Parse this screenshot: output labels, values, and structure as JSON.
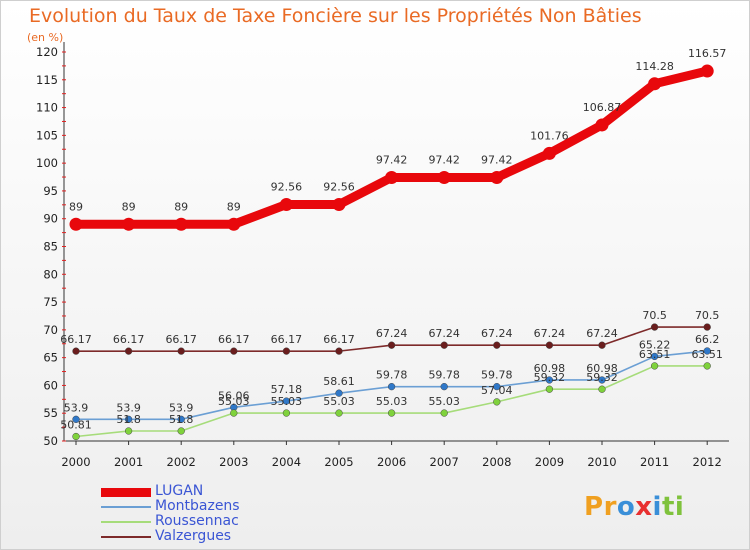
{
  "title": "Evolution du Taux de Taxe Foncière sur les Propriétés Non Bâties",
  "unit_label": "(en %)",
  "chart_data": {
    "type": "line",
    "title": "Evolution du Taux de Taxe Foncière sur les Propriétés Non Bâties",
    "ylabel": "(en %)",
    "xlabel": "",
    "ylim": [
      50,
      120
    ],
    "yticks": [
      50,
      55,
      60,
      65,
      70,
      75,
      80,
      85,
      90,
      95,
      100,
      105,
      110,
      115,
      120
    ],
    "x": [
      "2000",
      "2001",
      "2002",
      "2003",
      "2004",
      "2005",
      "2006",
      "2007",
      "2008",
      "2009",
      "2010",
      "2011",
      "2012"
    ],
    "grid": false,
    "legend_position": "bottom-left",
    "series": [
      {
        "name": "LUGAN",
        "color": "#e8080c",
        "bold": true,
        "values": [
          89,
          89,
          89,
          89,
          92.56,
          92.56,
          97.42,
          97.42,
          97.42,
          101.76,
          106.87,
          114.28,
          116.57
        ],
        "labels": [
          "89",
          "89",
          "89",
          "89",
          "92.56",
          "92.56",
          "97.42",
          "97.42",
          "97.42",
          "101.76",
          "106.87",
          "114.28",
          "116.57"
        ]
      },
      {
        "name": "Montbazens",
        "color": "#6b9fd4",
        "marker": "#2f78c9",
        "values": [
          53.9,
          53.9,
          53.9,
          56.06,
          57.18,
          58.61,
          59.78,
          59.78,
          59.78,
          60.98,
          60.98,
          65.22,
          66.2
        ],
        "labels": [
          "53.9",
          "53.9",
          "53.9",
          "56.06",
          "57.18",
          "58.61",
          "59.78",
          "59.78",
          "59.78",
          "60.98",
          "60.98",
          "65.22",
          "66.2"
        ]
      },
      {
        "name": "Roussennac",
        "color": "#a6dc7a",
        "marker": "#7fd23c",
        "values": [
          50.81,
          51.8,
          51.8,
          55.03,
          55.03,
          55.03,
          55.03,
          55.03,
          57.04,
          59.32,
          59.32,
          63.51,
          63.51
        ],
        "labels": [
          "50.81",
          "51.8",
          "51.8",
          "55.03",
          "55.03",
          "55.03",
          "55.03",
          "55.03",
          "57.04",
          "59.32",
          "59.32",
          "63.51",
          "63.51"
        ]
      },
      {
        "name": "Valzergues",
        "color": "#7d2a2a",
        "marker": "#6a1d1d",
        "values": [
          66.17,
          66.17,
          66.17,
          66.17,
          66.17,
          66.17,
          67.24,
          67.24,
          67.24,
          67.24,
          67.24,
          70.5,
          70.5
        ],
        "labels": [
          "66.17",
          "66.17",
          "66.17",
          "66.17",
          "66.17",
          "66.17",
          "67.24",
          "67.24",
          "67.24",
          "67.24",
          "67.24",
          "70.5",
          "70.5"
        ]
      }
    ]
  },
  "legend": {
    "items": [
      {
        "label": "LUGAN",
        "color": "#e8080c"
      },
      {
        "label": "Montbazens",
        "color": "#6b9fd4"
      },
      {
        "label": "Roussennac",
        "color": "#a6dc7a"
      },
      {
        "label": "Valzergues",
        "color": "#7d2a2a"
      }
    ]
  },
  "logo": {
    "text": "Proxiti",
    "letters": [
      "P",
      "r",
      "o",
      "x",
      "i",
      "t",
      "i"
    ],
    "colors": [
      "#f0a020",
      "#f0a020",
      "#3a8fd8",
      "#e83030",
      "#3a8fd8",
      "#7fc23c",
      "#7fc23c"
    ]
  }
}
